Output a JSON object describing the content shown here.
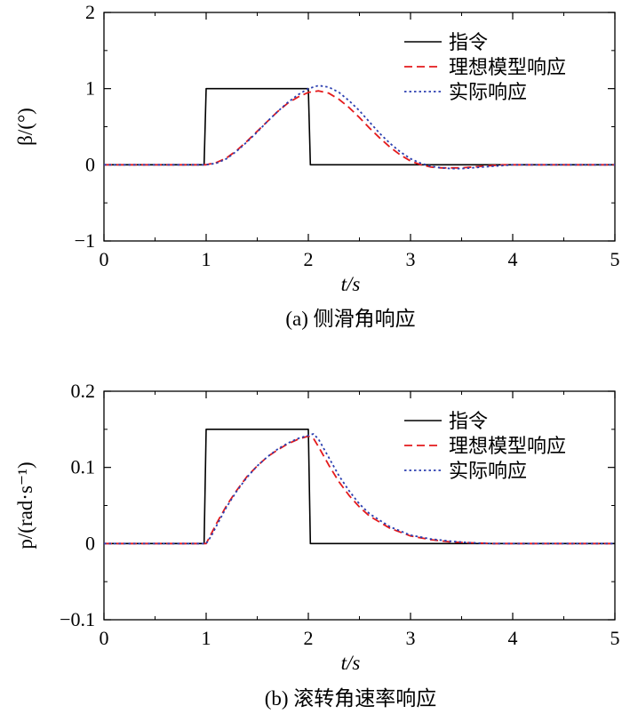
{
  "chart_data": [
    {
      "type": "line",
      "caption": "(a) 侧滑角响应",
      "xlabel": "t/s",
      "ylabel": "β/(°)",
      "xlim": [
        0,
        5
      ],
      "ylim": [
        -1,
        2
      ],
      "xticks": [
        "0",
        "1",
        "2",
        "3",
        "4",
        "5"
      ],
      "yticks": [
        "−1",
        "0",
        "1",
        "2"
      ],
      "grid": false,
      "legend": "top-right",
      "series": [
        {
          "name": "指令",
          "color": "#000000",
          "style": "solid",
          "x": [
            0,
            0.98,
            1.0,
            2.0,
            2.02,
            5
          ],
          "y": [
            0,
            0,
            1,
            1,
            0,
            0
          ]
        },
        {
          "name": "理想模型响应",
          "color": "#e41a1c",
          "style": "dashed",
          "x": [
            0,
            1.0,
            1.1,
            1.2,
            1.3,
            1.4,
            1.5,
            1.6,
            1.7,
            1.8,
            1.9,
            2.0,
            2.1,
            2.2,
            2.3,
            2.4,
            2.5,
            2.6,
            2.7,
            2.8,
            2.9,
            3.0,
            3.1,
            3.2,
            3.3,
            3.4,
            3.5,
            3.6,
            3.7,
            3.8,
            3.9,
            4.0,
            4.5,
            5.0
          ],
          "y": [
            0,
            0,
            0.03,
            0.09,
            0.19,
            0.31,
            0.44,
            0.57,
            0.7,
            0.81,
            0.89,
            0.95,
            0.97,
            0.94,
            0.86,
            0.75,
            0.62,
            0.48,
            0.35,
            0.23,
            0.13,
            0.05,
            0.0,
            -0.03,
            -0.04,
            -0.04,
            -0.04,
            -0.03,
            -0.02,
            -0.01,
            0.0,
            0.0,
            0.0,
            0.0
          ]
        },
        {
          "name": "实际响应",
          "color": "#2b3fb0",
          "style": "dotted",
          "x": [
            0,
            1.0,
            1.1,
            1.2,
            1.3,
            1.4,
            1.5,
            1.6,
            1.7,
            1.8,
            1.9,
            2.0,
            2.1,
            2.2,
            2.3,
            2.4,
            2.5,
            2.6,
            2.7,
            2.8,
            2.9,
            3.0,
            3.1,
            3.2,
            3.3,
            3.4,
            3.5,
            3.6,
            3.7,
            3.8,
            3.9,
            4.0,
            4.5,
            5.0
          ],
          "y": [
            0,
            0,
            0.02,
            0.08,
            0.18,
            0.3,
            0.43,
            0.57,
            0.7,
            0.82,
            0.92,
            1.0,
            1.04,
            1.02,
            0.95,
            0.84,
            0.71,
            0.56,
            0.41,
            0.28,
            0.17,
            0.08,
            0.02,
            -0.02,
            -0.04,
            -0.05,
            -0.05,
            -0.04,
            -0.03,
            -0.02,
            -0.01,
            0.0,
            0.0,
            0.0
          ]
        }
      ]
    },
    {
      "type": "line",
      "caption": "(b) 滚转角速率响应",
      "xlabel": "t/s",
      "ylabel": "p/(rad·s⁻¹)",
      "xlim": [
        0,
        5
      ],
      "ylim": [
        -0.1,
        0.2
      ],
      "xticks": [
        "0",
        "1",
        "2",
        "3",
        "4",
        "5"
      ],
      "yticks": [
        "−0.1",
        "0",
        "0.1",
        "0.2"
      ],
      "grid": false,
      "legend": "top-right",
      "series": [
        {
          "name": "指令",
          "color": "#000000",
          "style": "solid",
          "x": [
            0,
            0.98,
            1.0,
            2.0,
            2.02,
            5
          ],
          "y": [
            0,
            0,
            0.15,
            0.15,
            0,
            0
          ]
        },
        {
          "name": "理想模型响应",
          "color": "#e41a1c",
          "style": "dashed",
          "x": [
            0,
            1.0,
            1.05,
            1.1,
            1.2,
            1.3,
            1.4,
            1.5,
            1.6,
            1.7,
            1.8,
            1.9,
            2.0,
            2.05,
            2.1,
            2.2,
            2.3,
            2.4,
            2.5,
            2.6,
            2.8,
            3.0,
            3.2,
            3.4,
            3.6,
            3.8,
            4.0,
            4.5,
            5.0
          ],
          "y": [
            0,
            0,
            0.013,
            0.026,
            0.05,
            0.07,
            0.088,
            0.102,
            0.114,
            0.123,
            0.131,
            0.137,
            0.141,
            0.138,
            0.127,
            0.103,
            0.081,
            0.063,
            0.048,
            0.036,
            0.02,
            0.01,
            0.005,
            0.002,
            0.001,
            0.0,
            0.0,
            0.0,
            0.0
          ]
        },
        {
          "name": "实际响应",
          "color": "#2b3fb0",
          "style": "dotted",
          "x": [
            0,
            1.0,
            1.05,
            1.1,
            1.2,
            1.3,
            1.4,
            1.5,
            1.6,
            1.7,
            1.8,
            1.9,
            2.0,
            2.05,
            2.1,
            2.2,
            2.3,
            2.4,
            2.5,
            2.6,
            2.8,
            3.0,
            3.2,
            3.4,
            3.6,
            3.8,
            4.0,
            4.5,
            5.0
          ],
          "y": [
            0,
            0,
            0.01,
            0.023,
            0.048,
            0.069,
            0.087,
            0.102,
            0.114,
            0.124,
            0.132,
            0.138,
            0.142,
            0.144,
            0.137,
            0.113,
            0.089,
            0.069,
            0.052,
            0.039,
            0.022,
            0.011,
            0.006,
            0.003,
            0.001,
            0.0,
            0.0,
            0.0,
            0.0
          ]
        }
      ]
    }
  ]
}
